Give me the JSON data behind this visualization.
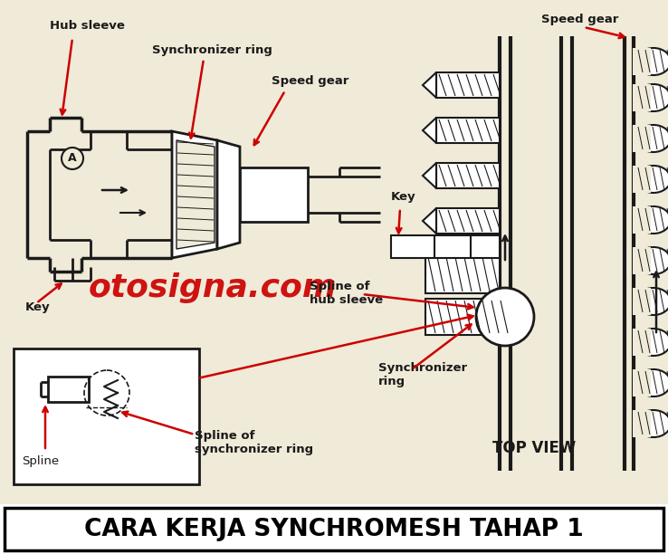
{
  "title": "CARA KERJA SYNCHROMESH TAHAP 1",
  "title_fontsize": 19,
  "bg_color": "#f0ead8",
  "diagram_bg": "#ffffff",
  "watermark": "otosigna.com",
  "watermark_color": "#cc0000",
  "watermark_fontsize": 26,
  "labels": {
    "hub_sleeve": "Hub sleeve",
    "synchronizer_ring_top": "Synchronizer ring",
    "speed_gear_left": "Speed gear",
    "speed_gear_right": "Speed gear",
    "key_left": "Key",
    "key_right": "Key",
    "spline_of_hub_sleeve": "Spline of\nhub sleeve",
    "synchronizer_ring_bottom": "Synchronizer\nring",
    "top_view": "TOP VIEW",
    "spline": "Spline",
    "spline_of_sync_ring": "Spline of\nsynchronizer ring"
  },
  "label_fontsize": 9.5,
  "arrow_color": "#cc0000",
  "diagram_color": "#1a1a1a",
  "figsize": [
    7.38,
    6.12
  ],
  "dpi": 100
}
